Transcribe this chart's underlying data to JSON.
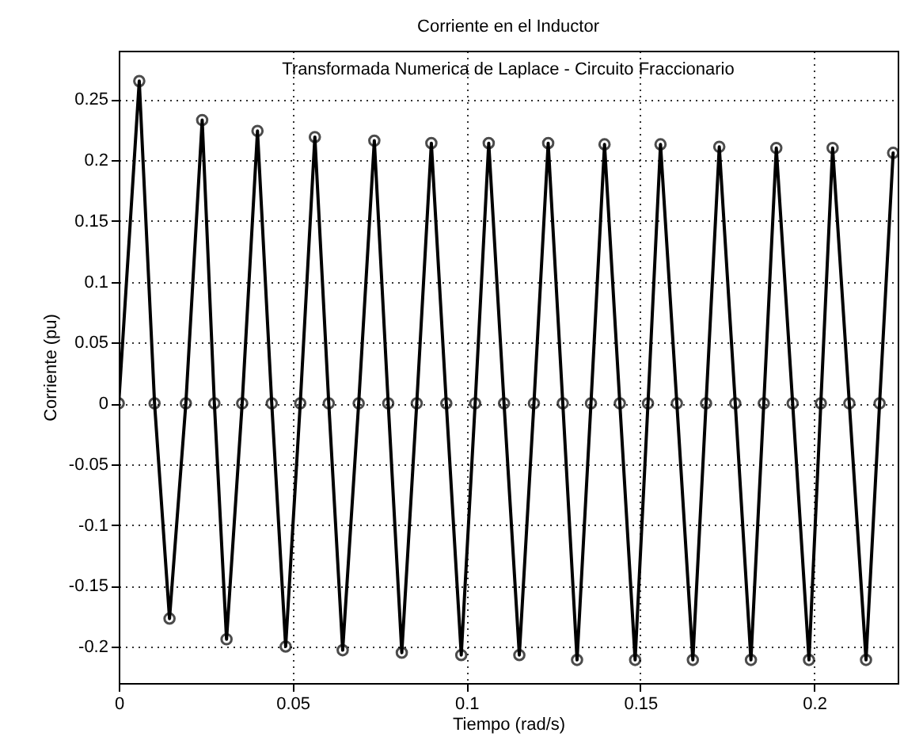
{
  "chart_data": {
    "type": "line",
    "title": "Corriente en el Inductor",
    "xlabel": "Tiempo (rad/s)",
    "ylabel": "Corriente (pu)",
    "annotations": [
      "Transformada Numerica de Laplace - Circuito Fraccionario"
    ],
    "x": [
      0,
      0.0059,
      0.0103,
      0.0146,
      0.0193,
      0.024,
      0.0275,
      0.031,
      0.0355,
      0.0399,
      0.044,
      0.048,
      0.0522,
      0.0564,
      0.0604,
      0.0644,
      0.069,
      0.0735,
      0.0775,
      0.0814,
      0.0857,
      0.0899,
      0.0942,
      0.0985,
      0.1025,
      0.1064,
      0.1108,
      0.1152,
      0.1194,
      0.1235,
      0.1277,
      0.1318,
      0.1358,
      0.1397,
      0.1441,
      0.1485,
      0.1522,
      0.1558,
      0.1605,
      0.1651,
      0.1689,
      0.1727,
      0.1773,
      0.1818,
      0.1855,
      0.1891,
      0.1938,
      0.1985,
      0.2019,
      0.2053,
      0.2101,
      0.2149,
      0.2188,
      0.2227
    ],
    "series": [
      {
        "color": "#000000",
        "values": [
          0,
          0.265,
          0,
          -0.177,
          0,
          0.233,
          0,
          -0.194,
          0,
          0.224,
          0,
          -0.2,
          0,
          0.219,
          0,
          -0.203,
          0,
          0.216,
          0,
          -0.205,
          0,
          0.214,
          0,
          -0.207,
          0,
          0.214,
          0,
          -0.207,
          0,
          0.214,
          0,
          -0.211,
          0,
          0.213,
          0,
          -0.211,
          0,
          0.213,
          0,
          -0.211,
          0,
          0.211,
          0,
          -0.211,
          0,
          0.21,
          0,
          -0.211,
          0,
          0.21,
          0,
          -0.211,
          0,
          0.206
        ]
      }
    ],
    "xlim": [
      0,
      0.224
    ],
    "ylim": [
      -0.23,
      0.29
    ],
    "xticks": [
      0,
      0.05,
      0.1,
      0.15,
      0.2
    ],
    "yticks": [
      -0.2,
      -0.15,
      -0.1,
      -0.05,
      0,
      0.05,
      0.1,
      0.15,
      0.2,
      0.25
    ],
    "grid": true,
    "marker": "circle",
    "line_style": "solid"
  }
}
